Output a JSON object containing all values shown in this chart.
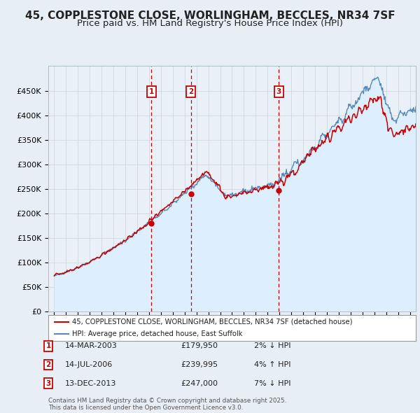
{
  "title": "45, COPPLESTONE CLOSE, WORLINGHAM, BECCLES, NR34 7SF",
  "subtitle": "Price paid vs. HM Land Registry's House Price Index (HPI)",
  "legend_line1": "45, COPPLESTONE CLOSE, WORLINGHAM, BECCLES, NR34 7SF (detached house)",
  "legend_line2": "HPI: Average price, detached house, East Suffolk",
  "footer": "Contains HM Land Registry data © Crown copyright and database right 2025.\nThis data is licensed under the Open Government Licence v3.0.",
  "transactions": [
    {
      "num": 1,
      "date": "14-MAR-2003",
      "price": 179950,
      "pct": "2%",
      "dir": "↓",
      "year": 2003.2
    },
    {
      "num": 2,
      "date": "14-JUL-2006",
      "price": 239995,
      "pct": "4%",
      "dir": "↑",
      "year": 2006.54
    },
    {
      "num": 3,
      "date": "13-DEC-2013",
      "price": 247000,
      "pct": "7%",
      "dir": "↓",
      "year": 2013.95
    }
  ],
  "price_color": "#cc0000",
  "hpi_color": "#5588bb",
  "hpi_fill_color": "#ddeeff",
  "vline_color": "#cc0000",
  "box_color": "#cc0000",
  "ylim": [
    0,
    500000
  ],
  "yticks": [
    0,
    50000,
    100000,
    150000,
    200000,
    250000,
    300000,
    350000,
    400000,
    450000
  ],
  "xlim_start": 1994.5,
  "xlim_end": 2025.5,
  "background_color": "#e8eef5",
  "plot_bg": "#eaf0f8",
  "title_fontsize": 11,
  "subtitle_fontsize": 9.5
}
